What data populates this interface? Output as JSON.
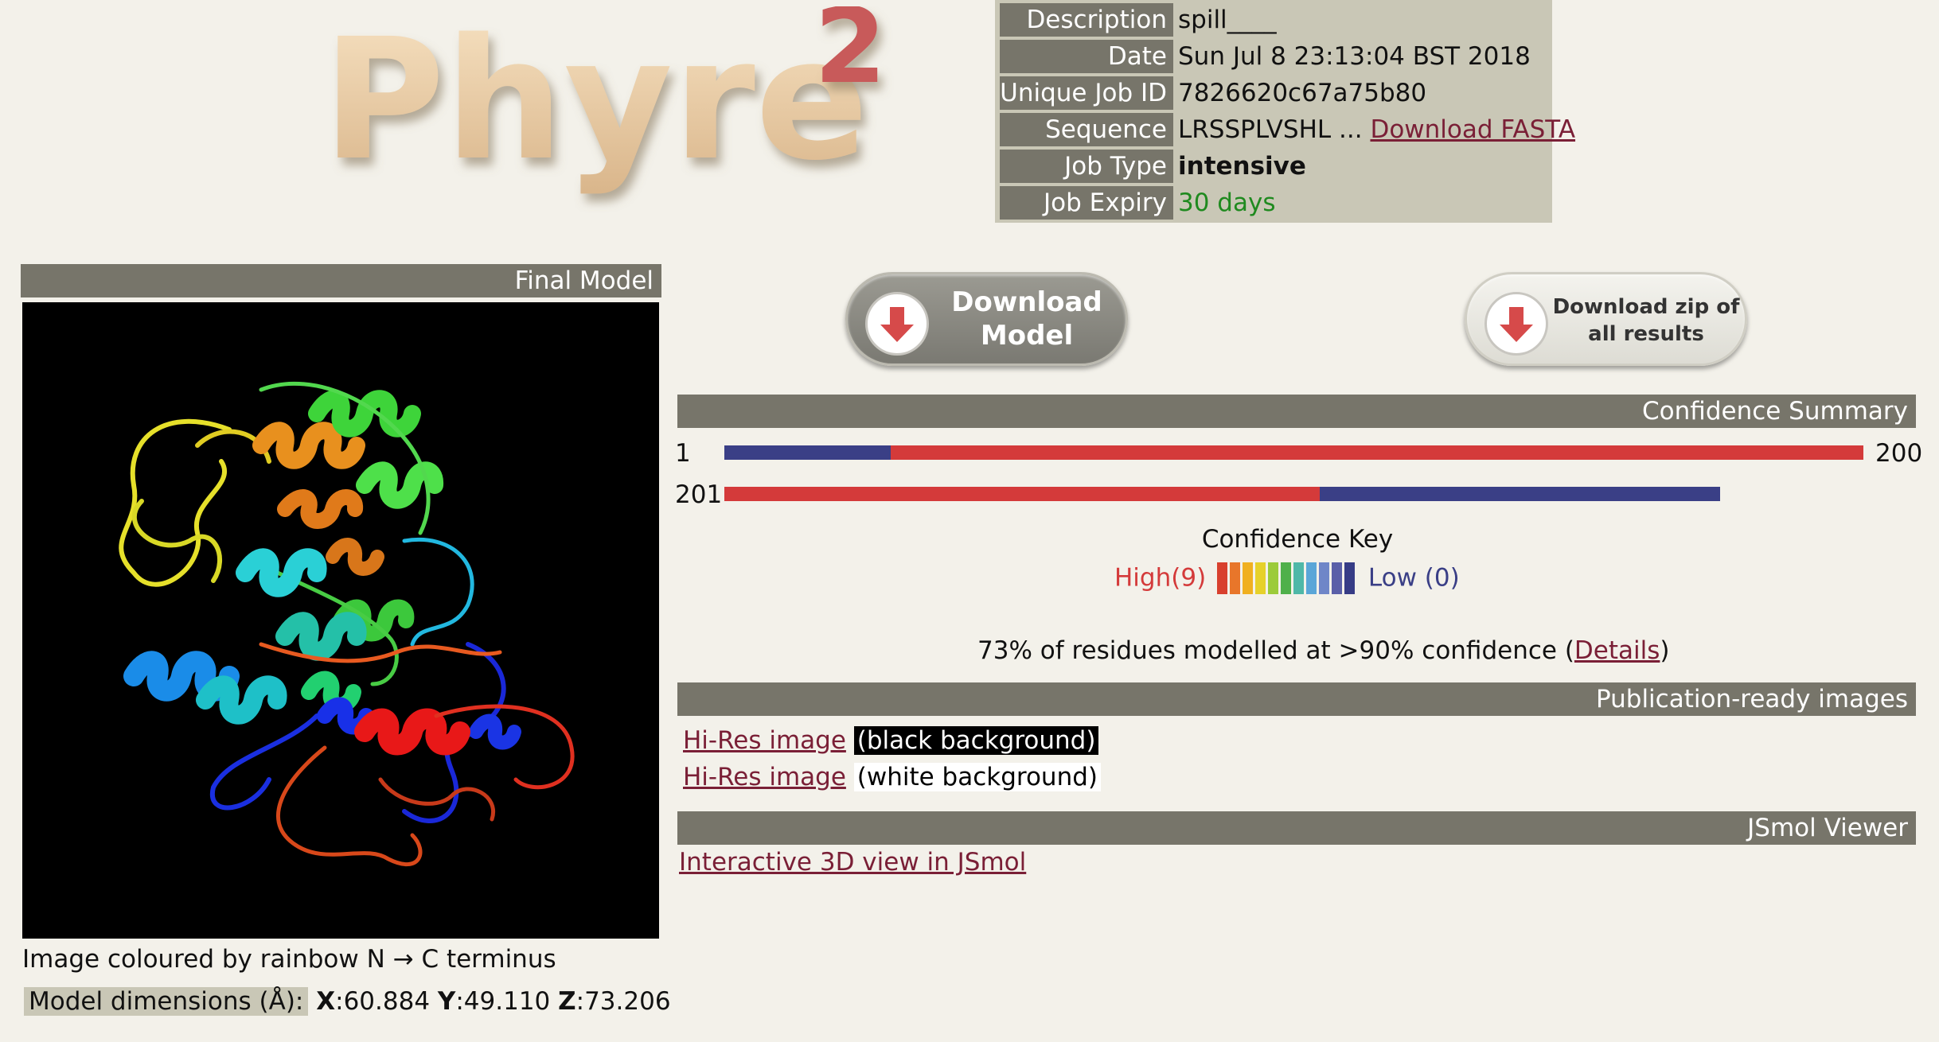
{
  "logo": {
    "text": "Phyre",
    "superscript": "2"
  },
  "info": {
    "rows": [
      {
        "label": "Description",
        "value": "spill____"
      },
      {
        "label": "Date",
        "value": "Sun Jul 8 23:13:04 BST 2018"
      },
      {
        "label": "Unique Job ID",
        "value": "7826620c67a75b80"
      },
      {
        "label": "Sequence",
        "value": "LRSSPLVSHL ...",
        "link": "Download FASTA"
      },
      {
        "label": "Job Type",
        "value": "intensive"
      },
      {
        "label": "Job Expiry",
        "value": "30 days"
      }
    ]
  },
  "final_model": {
    "header": "Final Model",
    "caption": "Image coloured by rainbow N → C terminus",
    "dims_label": "Model dimensions (Å):",
    "x_label": "X",
    "x_value": ":60.884",
    "y_label": "Y",
    "y_value": ":49.110",
    "z_label": "Z",
    "z_value": ":73.206"
  },
  "buttons": {
    "download_model_line1": "Download",
    "download_model_line2": "Model",
    "download_zip_line1": "Download zip of",
    "download_zip_line2": "all results"
  },
  "confidence_summary": {
    "header": "Confidence Summary",
    "row1_start": "1",
    "row1_end": "200",
    "row2_start": "201",
    "row1_segments": [
      {
        "from": 1,
        "to": 30,
        "color": "#3a3f86"
      },
      {
        "from": 30,
        "to": 200,
        "color": "#d43a3a"
      }
    ],
    "row2_segments": [
      {
        "from": 201,
        "to": 305,
        "color": "#d43a3a"
      },
      {
        "from": 305,
        "to": 375,
        "color": "#3a3f86"
      }
    ]
  },
  "confidence_key": {
    "title": "Confidence Key",
    "high": "High(9)",
    "low": "Low (0)",
    "colors": [
      "#d8402e",
      "#e8762a",
      "#f0b020",
      "#e6d12a",
      "#9ccb3a",
      "#4fb04a",
      "#4fb8a8",
      "#5aa6d8",
      "#6f86c8",
      "#5a5fa8",
      "#363c86"
    ]
  },
  "summary": {
    "text": "73% of residues modelled at >90% confidence (",
    "details_link": "Details",
    "close": ")"
  },
  "publication": {
    "header": "Publication-ready images",
    "link1": "Hi-Res image",
    "label1": "(black background)",
    "link2": "Hi-Res image",
    "label2": "(white background)"
  },
  "jsmol": {
    "header": "JSmol Viewer",
    "link": "Interactive 3D view in JSmol"
  }
}
